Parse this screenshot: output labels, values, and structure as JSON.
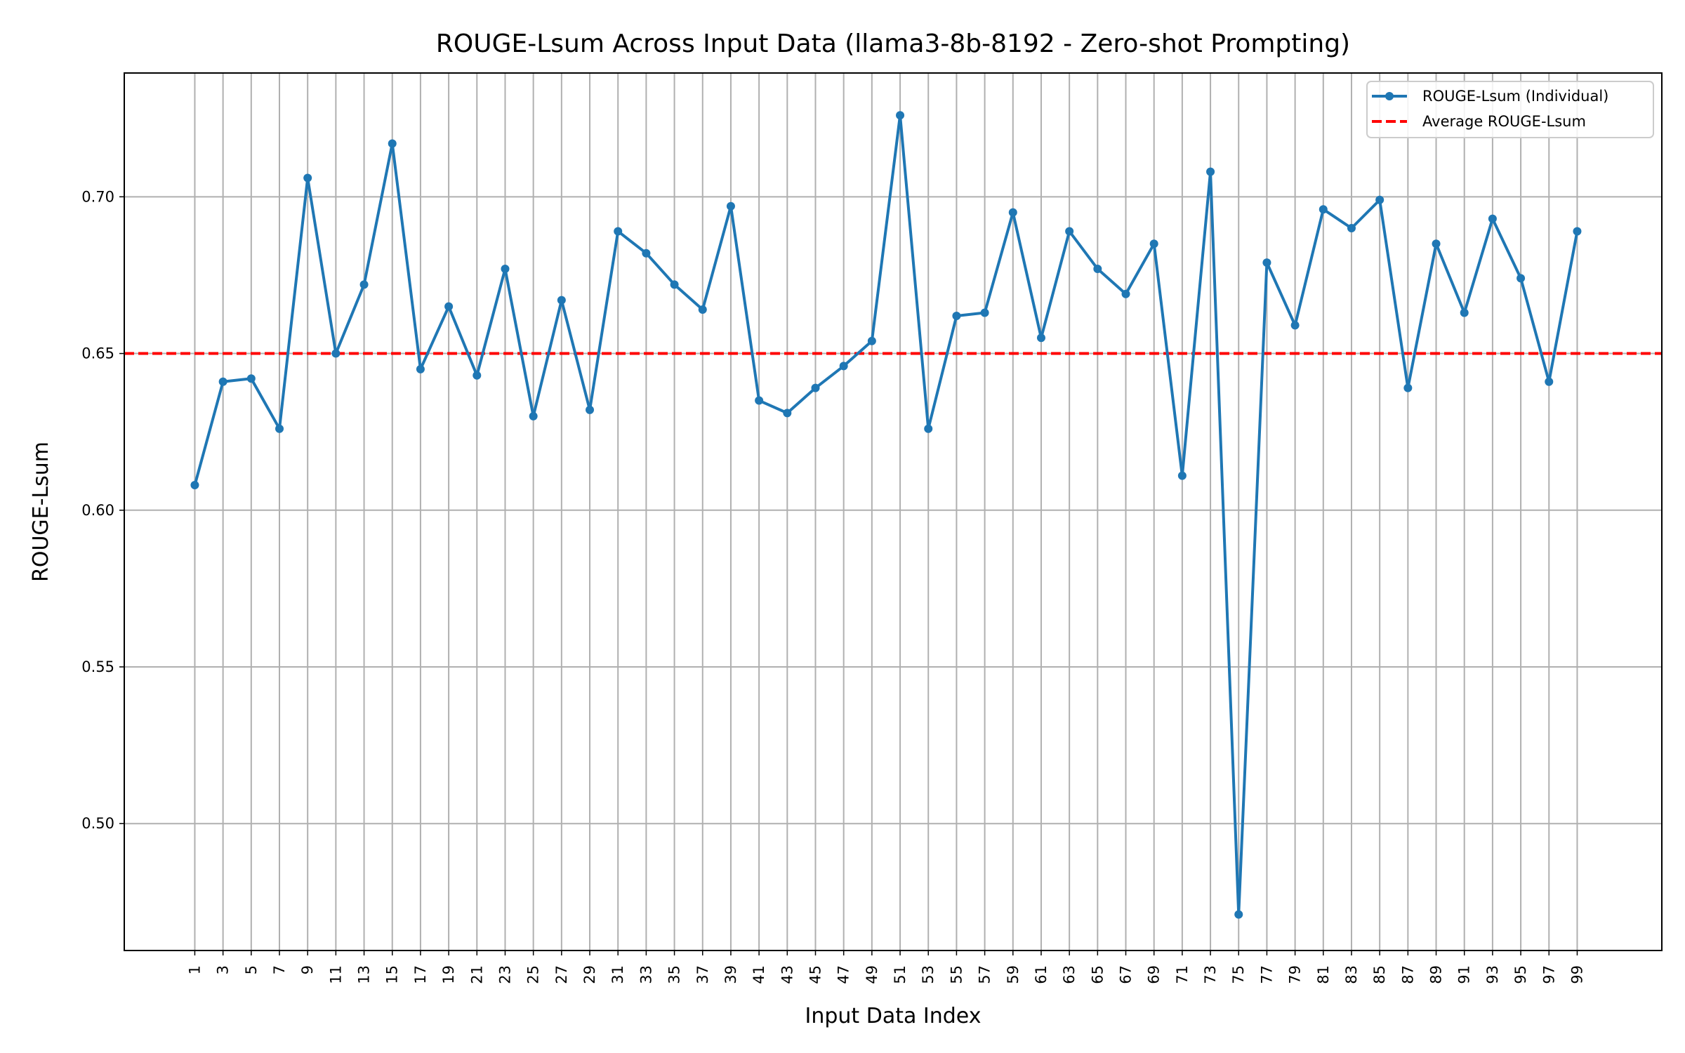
{
  "chart_data": {
    "type": "line",
    "title": "ROUGE-Lsum Across Input Data (llama3-8b-8192 - Zero-shot Prompting)",
    "xlabel": "Input Data Index",
    "ylabel": "ROUGE-Lsum",
    "x": [
      1,
      3,
      5,
      7,
      9,
      11,
      13,
      15,
      17,
      19,
      21,
      23,
      25,
      27,
      29,
      31,
      33,
      35,
      37,
      39,
      41,
      43,
      45,
      47,
      49,
      51,
      53,
      55,
      57,
      59,
      61,
      63,
      65,
      67,
      69,
      71,
      73,
      75,
      77,
      79,
      81,
      83,
      85,
      87,
      89,
      91,
      93,
      95,
      97,
      99
    ],
    "xticks": [
      "1",
      "3",
      "5",
      "7",
      "9",
      "11",
      "13",
      "15",
      "17",
      "19",
      "21",
      "23",
      "25",
      "27",
      "29",
      "31",
      "33",
      "35",
      "37",
      "39",
      "41",
      "43",
      "45",
      "47",
      "49",
      "51",
      "53",
      "55",
      "57",
      "59",
      "61",
      "63",
      "65",
      "67",
      "69",
      "71",
      "73",
      "75",
      "77",
      "79",
      "81",
      "83",
      "85",
      "87",
      "89",
      "91",
      "93",
      "95",
      "97",
      "99"
    ],
    "xlim": [
      -4,
      105
    ],
    "yticks": [
      "0.50",
      "0.55",
      "0.60",
      "0.65",
      "0.70"
    ],
    "ylim": [
      0.4595,
      0.7395
    ],
    "series": [
      {
        "name": "ROUGE-Lsum (Individual)",
        "color": "#1f77b4",
        "style": "solid-with-markers",
        "values": [
          0.608,
          0.641,
          0.642,
          0.626,
          0.706,
          0.65,
          0.672,
          0.717,
          0.645,
          0.665,
          0.643,
          0.677,
          0.63,
          0.667,
          0.632,
          0.689,
          0.682,
          0.672,
          0.664,
          0.697,
          0.635,
          0.631,
          0.639,
          0.646,
          0.654,
          0.726,
          0.626,
          0.662,
          0.663,
          0.695,
          0.655,
          0.689,
          0.677,
          0.669,
          0.685,
          0.611,
          0.708,
          0.471,
          0.679,
          0.659,
          0.696,
          0.69,
          0.699,
          0.639,
          0.685,
          0.663,
          0.693,
          0.674,
          0.641,
          0.689
        ]
      },
      {
        "name": "Average ROUGE-Lsum",
        "color": "#ff0000",
        "style": "dashed",
        "value": 0.65
      }
    ],
    "grid": true,
    "legend_position": "top-right"
  }
}
